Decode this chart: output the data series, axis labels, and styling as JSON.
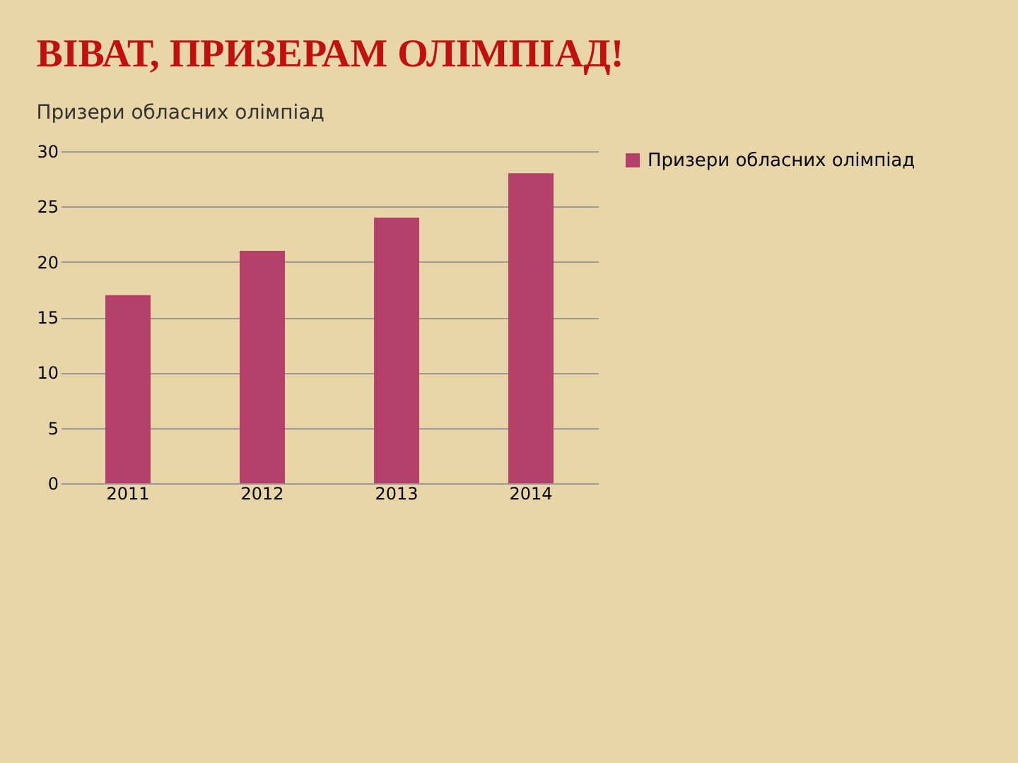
{
  "chart_data": {
    "type": "bar",
    "title": "ВІВАТ, ПРИЗЕРАМ ОЛІМПІАД!",
    "subtitle": "Призери обласних олімпіад",
    "categories": [
      "2011",
      "2012",
      "2013",
      "2014"
    ],
    "series": [
      {
        "name": "Призери обласних олімпіад",
        "color": "#b5406a",
        "values": [
          17,
          21,
          24,
          28
        ]
      }
    ],
    "ylim": [
      0,
      30
    ],
    "yticks": [
      0,
      5,
      10,
      15,
      20,
      25,
      30
    ],
    "grid": "y",
    "legend": "right"
  }
}
